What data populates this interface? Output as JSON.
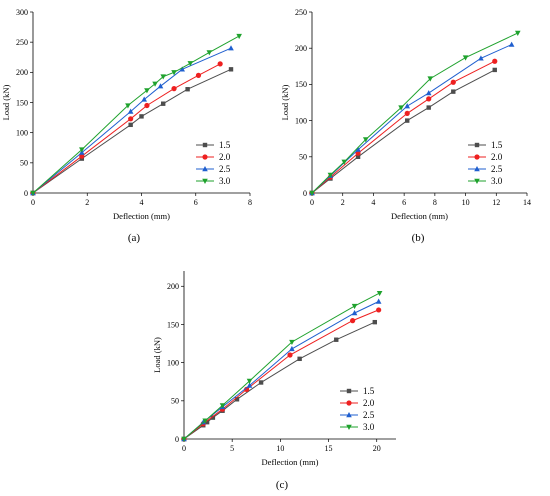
{
  "chart_data": [
    {
      "type": "line",
      "panel_label": "(a)",
      "xlabel": "Deflection (mm)",
      "ylabel": "Load (kN)",
      "xlim": [
        0,
        8
      ],
      "ylim": [
        0,
        300
      ],
      "xticks": [
        0,
        2,
        4,
        6,
        8
      ],
      "yticks": [
        0,
        50,
        100,
        150,
        200,
        250,
        300
      ],
      "grid": false,
      "legend_position": "right-center",
      "series": [
        {
          "name": "1.5",
          "color": "#4d4d4d",
          "marker": "square",
          "x": [
            0,
            1.8,
            3.6,
            4.0,
            4.8,
            5.7,
            7.3
          ],
          "y": [
            0,
            57,
            113,
            127,
            148,
            172,
            205
          ]
        },
        {
          "name": "2.0",
          "color": "#ee2020",
          "marker": "circle",
          "x": [
            0,
            1.8,
            3.6,
            4.2,
            5.2,
            6.1,
            6.9
          ],
          "y": [
            0,
            61,
            123,
            145,
            173,
            195,
            214
          ]
        },
        {
          "name": "2.5",
          "color": "#1f5fcf",
          "marker": "triangle-up",
          "x": [
            0,
            1.8,
            3.6,
            4.1,
            4.7,
            5.5,
            7.3
          ],
          "y": [
            0,
            67,
            135,
            155,
            177,
            205,
            240
          ]
        },
        {
          "name": "3.0",
          "color": "#1fa22d",
          "marker": "triangle-down",
          "x": [
            0,
            1.8,
            3.5,
            4.2,
            4.5,
            4.8,
            5.2,
            5.8,
            6.5,
            7.6
          ],
          "y": [
            0,
            72,
            145,
            170,
            181,
            193,
            200,
            215,
            233,
            260
          ]
        }
      ]
    },
    {
      "type": "line",
      "panel_label": "(b)",
      "xlabel": "Deflection (mm)",
      "ylabel": "Load (kN)",
      "xlim": [
        0,
        14
      ],
      "ylim": [
        0,
        250
      ],
      "xticks": [
        0,
        2,
        4,
        6,
        8,
        10,
        12,
        14
      ],
      "yticks": [
        0,
        50,
        100,
        150,
        200,
        250
      ],
      "grid": false,
      "legend_position": "right-center",
      "series": [
        {
          "name": "1.5",
          "color": "#4d4d4d",
          "marker": "square",
          "x": [
            0,
            1.2,
            3.0,
            6.2,
            7.6,
            9.2,
            11.9
          ],
          "y": [
            0,
            20,
            50,
            100,
            118,
            140,
            170
          ]
        },
        {
          "name": "2.0",
          "color": "#ee2020",
          "marker": "circle",
          "x": [
            0,
            1.2,
            3.0,
            6.2,
            7.6,
            9.2,
            11.9
          ],
          "y": [
            0,
            22,
            55,
            110,
            130,
            153,
            182
          ]
        },
        {
          "name": "2.5",
          "color": "#1f5fcf",
          "marker": "triangle-up",
          "x": [
            0,
            1.2,
            3.0,
            6.2,
            7.6,
            11.0,
            13.0
          ],
          "y": [
            0,
            24,
            60,
            120,
            138,
            186,
            205
          ]
        },
        {
          "name": "3.0",
          "color": "#1fa22d",
          "marker": "triangle-down",
          "x": [
            0,
            1.2,
            2.1,
            3.5,
            5.8,
            7.7,
            10.0,
            13.4
          ],
          "y": [
            0,
            25,
            43,
            74,
            118,
            158,
            187,
            221
          ]
        }
      ]
    },
    {
      "type": "line",
      "panel_label": "(c)",
      "xlabel": "Deflection (mm)",
      "ylabel": "Load (kN)",
      "xlim": [
        0,
        22
      ],
      "ylim": [
        0,
        220
      ],
      "xticks": [
        0,
        5,
        10,
        15,
        20
      ],
      "yticks": [
        0,
        50,
        100,
        150,
        200
      ],
      "grid": false,
      "legend_position": "bottom-right",
      "series": [
        {
          "name": "1.5",
          "color": "#4d4d4d",
          "marker": "square",
          "x": [
            0,
            2.0,
            2.4,
            3.0,
            4.0,
            5.5,
            8.0,
            12.0,
            15.8,
            19.8
          ],
          "y": [
            0,
            18,
            22,
            28,
            37,
            52,
            74,
            105,
            130,
            153
          ]
        },
        {
          "name": "2.0",
          "color": "#ee2020",
          "marker": "circle",
          "x": [
            0,
            2.0,
            4.0,
            6.5,
            11.0,
            17.5,
            20.2
          ],
          "y": [
            0,
            20,
            39,
            65,
            110,
            155,
            169
          ]
        },
        {
          "name": "2.5",
          "color": "#1f5fcf",
          "marker": "triangle-up",
          "x": [
            0,
            2.0,
            4.0,
            6.8,
            11.2,
            17.7,
            20.2
          ],
          "y": [
            0,
            22,
            42,
            70,
            118,
            165,
            180
          ]
        },
        {
          "name": "3.0",
          "color": "#1fa22d",
          "marker": "triangle-down",
          "x": [
            0,
            2.2,
            4.0,
            6.8,
            11.2,
            17.7,
            20.3
          ],
          "y": [
            0,
            24,
            44,
            76,
            127,
            174,
            191
          ]
        }
      ]
    }
  ]
}
